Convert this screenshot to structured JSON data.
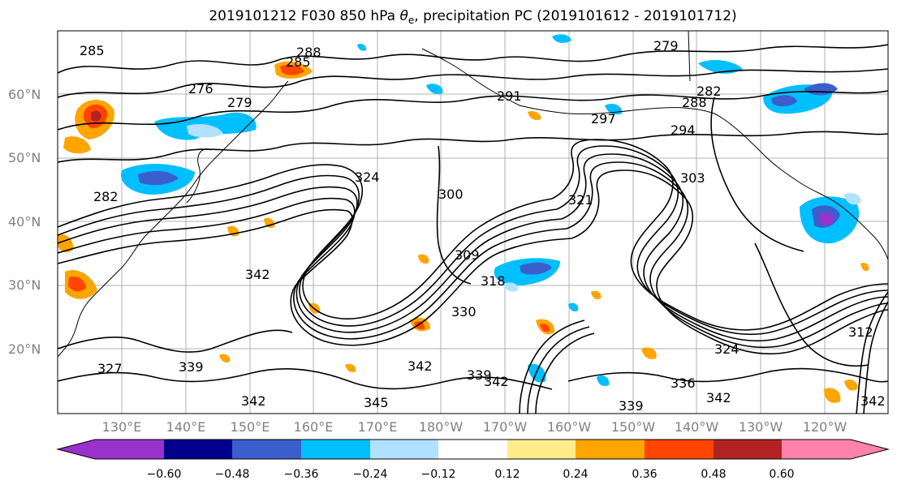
{
  "title": {
    "prefix": "2019101212 F030 850 hPa ",
    "symbol": "θ",
    "subscript": "e",
    "suffix": ", precipitation PC (2019101612 - 2019101712)"
  },
  "latitude_labels": [
    "60°N",
    "50°N",
    "40°N",
    "30°N",
    "20°N"
  ],
  "longitude_labels": [
    "130°E",
    "140°E",
    "150°E",
    "160°E",
    "170°E",
    "180°W",
    "170°W",
    "160°W",
    "150°W",
    "140°W",
    "130°W",
    "120°W"
  ],
  "contour_labels": [
    "288",
    "285",
    "279",
    "276",
    "279",
    "282",
    "291",
    "297",
    "282",
    "288",
    "294",
    "324",
    "300",
    "303",
    "321",
    "309",
    "318",
    "342",
    "330",
    "342",
    "339",
    "339",
    "342",
    "345",
    "342",
    "336",
    "324",
    "339",
    "327",
    "285",
    "312",
    "342",
    "342"
  ],
  "colorbar": {
    "tick_labels": [
      "−0.60",
      "−0.48",
      "−0.36",
      "−0.24",
      "−0.12",
      "0.12",
      "0.24",
      "0.36",
      "0.48",
      "0.60"
    ],
    "colors": [
      "#9932cc",
      "#00008b",
      "#3a5fcd",
      "#00bfff",
      "#b0e2ff",
      "#ffffff",
      "#ffec8b",
      "#ffa500",
      "#ff4500",
      "#b22222",
      "#ff82ab"
    ]
  }
}
